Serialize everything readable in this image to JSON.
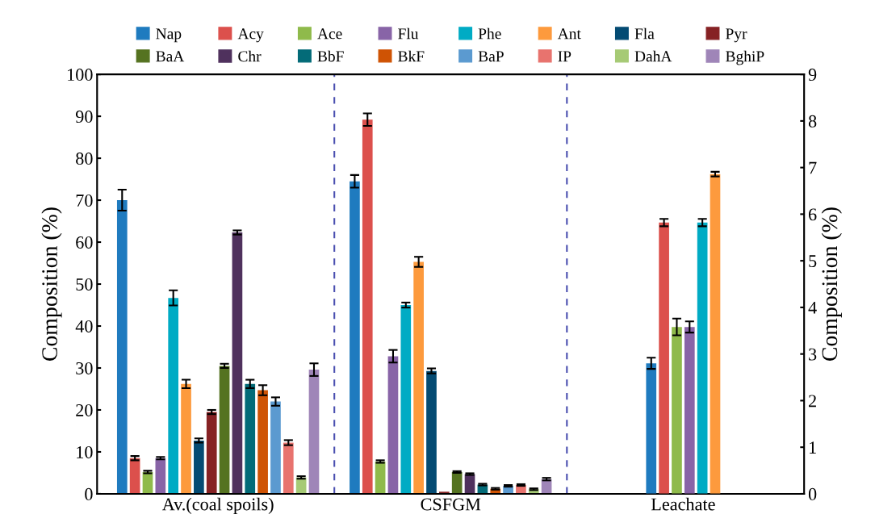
{
  "chart_data": {
    "type": "bar",
    "ylabel": "Composition (%)",
    "y2label": "Composition (%)",
    "categories": [
      "Av.(coal spoils)",
      "CSFGM",
      "Leachate"
    ],
    "ylim": [
      0,
      100
    ],
    "yticks": [
      0,
      10,
      20,
      30,
      40,
      50,
      60,
      70,
      80,
      90,
      100
    ],
    "y2lim": [
      0,
      9
    ],
    "y2ticks": [
      0,
      1,
      2,
      3,
      4,
      5,
      6,
      7,
      8,
      9
    ],
    "legend": "top",
    "grid": false,
    "series": [
      {
        "name": "Nap",
        "color": "#1f7bbf",
        "values": [
          70,
          74.5,
          null
        ],
        "errors": [
          2.5,
          1.5,
          null
        ]
      },
      {
        "name": "Acy",
        "color": "#dc504c",
        "values": [
          8.5,
          89.2,
          null
        ],
        "errors": [
          0.5,
          1.5,
          null
        ]
      },
      {
        "name": "Ace",
        "color": "#8fba4b",
        "values": [
          5.2,
          7.7,
          null
        ],
        "errors": [
          0.3,
          0.3,
          null
        ]
      },
      {
        "name": "Flu",
        "color": "#8864a7",
        "values": [
          8.5,
          32.8,
          null
        ],
        "errors": [
          0.3,
          1.5,
          null
        ]
      },
      {
        "name": "Phe",
        "color": "#00abc4",
        "values": [
          46.7,
          45,
          null
        ],
        "errors": [
          1.8,
          0.6,
          null
        ]
      },
      {
        "name": "Ant",
        "color": "#fd9a3d",
        "values": [
          26.2,
          55.3,
          null
        ],
        "errors": [
          1,
          1.2,
          null
        ]
      },
      {
        "name": "Fla",
        "color": "#044b73",
        "values": [
          12.7,
          29.3,
          null
        ],
        "errors": [
          0.5,
          0.6,
          null
        ]
      },
      {
        "name": "Pyr",
        "color": "#862224",
        "values": [
          19.5,
          0.5,
          null
        ],
        "errors": [
          0.5,
          null,
          null
        ]
      },
      {
        "name": "BaA",
        "color": "#557321",
        "values": [
          30.5,
          5.2,
          null
        ],
        "errors": [
          0.5,
          0.2,
          null
        ]
      },
      {
        "name": "Chr",
        "color": "#4f315d",
        "values": [
          62.3,
          4.7,
          null
        ],
        "errors": [
          0.5,
          0.2,
          null
        ]
      },
      {
        "name": "BbF",
        "color": "#036b78",
        "values": [
          26.2,
          2.2,
          null
        ],
        "errors": [
          1,
          0.2,
          null
        ]
      },
      {
        "name": "BkF",
        "color": "#cf5304",
        "values": [
          24.7,
          1.2,
          null
        ],
        "errors": [
          1.2,
          0.2,
          null
        ]
      },
      {
        "name": "BaP",
        "color": "#5b9ad0",
        "values": [
          22,
          1.9,
          null
        ],
        "errors": [
          1,
          0.2,
          null
        ]
      },
      {
        "name": "IP",
        "color": "#e8736e",
        "values": [
          12.2,
          2.1,
          null
        ],
        "errors": [
          0.6,
          0.2,
          null
        ]
      },
      {
        "name": "DahA",
        "color": "#a6ca75",
        "values": [
          3.9,
          1.1,
          null
        ],
        "errors": [
          0.3,
          0.2,
          null
        ]
      },
      {
        "name": "BghiP",
        "color": "#9f85b8",
        "values": [
          29.6,
          3.5,
          null
        ],
        "errors": [
          1.5,
          0.3,
          null
        ]
      },
      {
        "axis": "y2",
        "color": "#1f7bbf",
        "values": [
          null,
          null,
          2.8
        ],
        "errors": [
          null,
          null,
          0.12
        ]
      },
      {
        "axis": "y2",
        "color": "#dc504c",
        "values": [
          null,
          null,
          5.82
        ],
        "errors": [
          null,
          null,
          0.08
        ]
      },
      {
        "axis": "y2",
        "color": "#8fba4b",
        "values": [
          null,
          null,
          3.58
        ],
        "errors": [
          null,
          null,
          0.18
        ]
      },
      {
        "axis": "y2",
        "color": "#8864a7",
        "values": [
          null,
          null,
          3.58
        ],
        "errors": [
          null,
          null,
          0.12
        ]
      },
      {
        "axis": "y2",
        "color": "#00abc4",
        "values": [
          null,
          null,
          5.82
        ],
        "errors": [
          null,
          null,
          0.08
        ]
      },
      {
        "axis": "y2",
        "color": "#fd9a3d",
        "values": [
          null,
          null,
          6.86
        ],
        "errors": [
          null,
          null,
          0.05
        ]
      }
    ]
  }
}
